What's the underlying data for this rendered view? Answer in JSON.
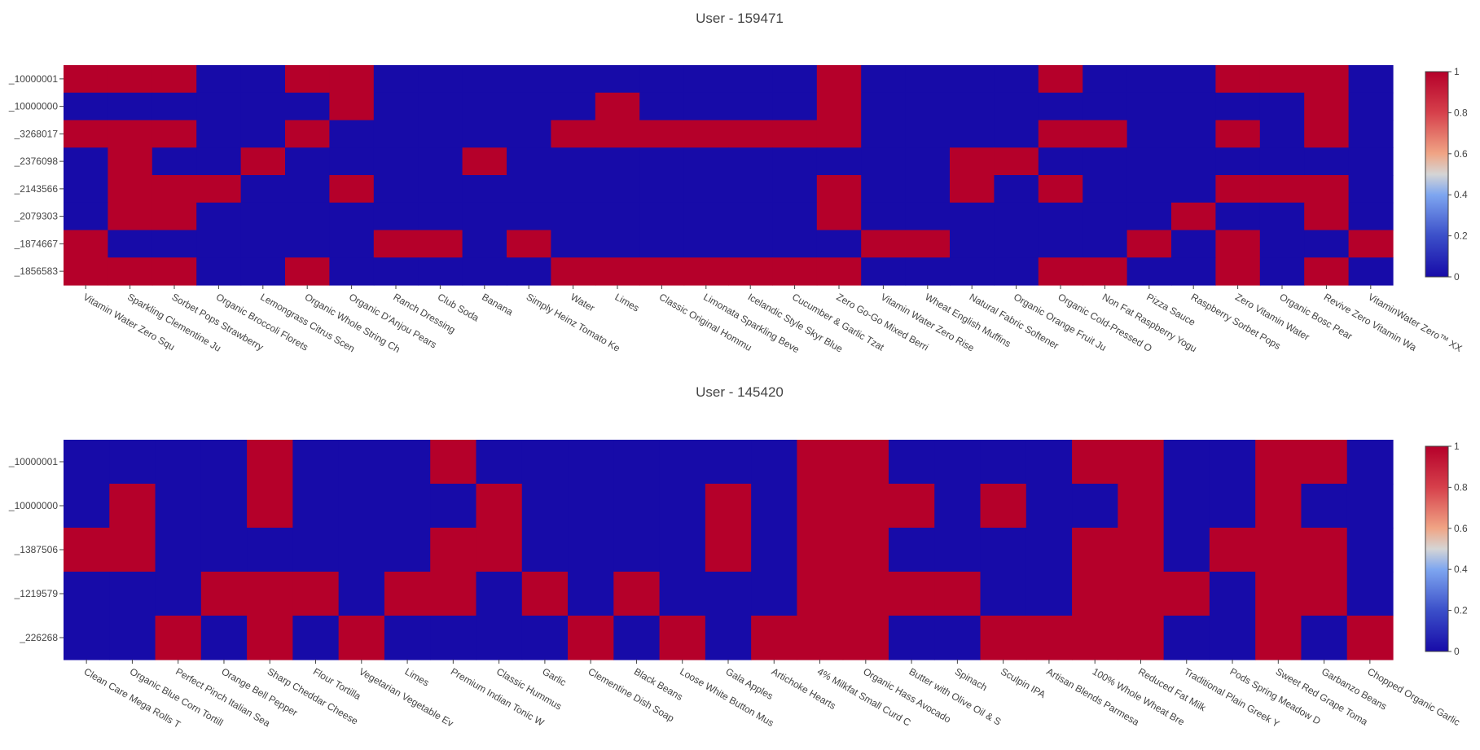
{
  "colors": {
    "one": "#b5002a",
    "zero": "#170ba8",
    "colorscale": [
      [
        0,
        "#170ba8"
      ],
      [
        0.2,
        "#3b4fc9"
      ],
      [
        0.4,
        "#7ea6f0"
      ],
      [
        0.5,
        "#d5d5d5"
      ],
      [
        0.6,
        "#f0a585"
      ],
      [
        0.8,
        "#d6404b"
      ],
      [
        1,
        "#b5002a"
      ]
    ]
  },
  "chart_data": [
    {
      "type": "heatmap",
      "title": "User - 159471",
      "colorbar_ticks": [
        "0",
        "0.2",
        "0.4",
        "0.6",
        "0.8",
        "1"
      ],
      "y": [
        "_10000001",
        "_10000000",
        "_3268017",
        "_2376098",
        "_2143566",
        "_2079303",
        "_1874667",
        "_1856583"
      ],
      "x": [
        "Vitamin Water Zero Squ",
        "Sparkling Clementine Ju",
        "Sorbet Pops Strawberry",
        "Organic Broccoli Florets",
        "Lemongrass Citrus Scen",
        "Organic Whole String Ch",
        "Organic D'Anjou Pears",
        "Ranch Dressing",
        "Club Soda",
        "Banana",
        "Simply Heinz Tomato Ke",
        "Water",
        "Limes",
        "Classic Original Hommu",
        "Limonata Sparkling Beve",
        "Icelandic Style Skyr Blue",
        "Cucumber & Garlic Tzat",
        "Zero Go-Go Mixed Berri",
        "Vitamin Water Zero Rise",
        "Wheat English Muffins",
        "Natural Fabric Softener",
        "Organic Orange Fruit Ju",
        "Organic Cold-Pressed O",
        "Non Fat Raspberry Yogu",
        "Pizza Sauce",
        "Raspberry Sorbet Pops",
        "Zero Vitamin Water",
        "Organic Bosc Pear",
        "Revive Zero Vitamin Wa",
        "VitaminWater Zero™ XX"
      ],
      "z": [
        [
          1,
          1,
          1,
          0,
          0,
          1,
          1,
          0,
          0,
          0,
          0,
          0,
          0,
          0,
          0,
          0,
          0,
          1,
          0,
          0,
          0,
          0,
          1,
          0,
          0,
          0,
          1,
          1,
          1,
          0
        ],
        [
          0,
          0,
          0,
          0,
          0,
          0,
          1,
          0,
          0,
          0,
          0,
          0,
          1,
          0,
          0,
          0,
          0,
          1,
          0,
          0,
          0,
          0,
          0,
          0,
          0,
          0,
          0,
          0,
          1,
          0
        ],
        [
          1,
          1,
          1,
          0,
          0,
          1,
          0,
          0,
          0,
          0,
          0,
          1,
          1,
          1,
          1,
          1,
          1,
          1,
          0,
          0,
          0,
          0,
          1,
          1,
          0,
          0,
          1,
          0,
          1,
          0
        ],
        [
          0,
          1,
          0,
          0,
          1,
          0,
          0,
          0,
          0,
          1,
          0,
          0,
          0,
          0,
          0,
          0,
          0,
          0,
          0,
          0,
          1,
          1,
          0,
          0,
          0,
          0,
          0,
          0,
          0,
          0
        ],
        [
          0,
          1,
          1,
          1,
          0,
          0,
          1,
          0,
          0,
          0,
          0,
          0,
          0,
          0,
          0,
          0,
          0,
          1,
          0,
          0,
          1,
          0,
          1,
          0,
          0,
          0,
          1,
          1,
          1,
          0
        ],
        [
          0,
          1,
          1,
          0,
          0,
          0,
          0,
          0,
          0,
          0,
          0,
          0,
          0,
          0,
          0,
          0,
          0,
          1,
          0,
          0,
          0,
          0,
          0,
          0,
          0,
          1,
          0,
          0,
          1,
          0
        ],
        [
          1,
          0,
          0,
          0,
          0,
          0,
          0,
          1,
          1,
          0,
          1,
          0,
          0,
          0,
          0,
          0,
          0,
          0,
          1,
          1,
          0,
          0,
          0,
          0,
          1,
          0,
          1,
          0,
          0,
          1
        ],
        [
          1,
          1,
          1,
          0,
          0,
          1,
          0,
          0,
          0,
          0,
          0,
          1,
          1,
          1,
          1,
          1,
          1,
          1,
          0,
          0,
          0,
          0,
          1,
          1,
          0,
          0,
          1,
          0,
          1,
          0
        ]
      ]
    },
    {
      "type": "heatmap",
      "title": "User - 145420",
      "colorbar_ticks": [
        "0",
        "0.2",
        "0.4",
        "0.6",
        "0.8",
        "1"
      ],
      "y": [
        "_10000001",
        "_10000000",
        "_1387506",
        "_1219579",
        "_226268"
      ],
      "x": [
        "Clean Care Mega Rolls T",
        "Organic Blue Corn Tortill",
        "Perfect Pinch Italian Sea",
        "Orange Bell Pepper",
        "Sharp Cheddar Cheese",
        "Flour Tortilla",
        "Vegetarian Vegetable Ev",
        "Limes",
        "Premium Indian Tonic W",
        "Classic Hummus",
        "Garlic",
        "Clementine Dish Soap",
        "Black Beans",
        "Loose White Button Mus",
        "Gala Apples",
        "Artichoke Hearts",
        "4% Milkfat Small Curd C",
        "Organic Hass Avocado",
        "Butter with Olive Oil & S",
        "Spinach",
        "Sculpin IPA",
        "Artisan Blends Parmesa",
        "100% Whole Wheat Bre",
        "Reduced Fat Milk",
        "Traditional Plain Greek Y",
        "Pods Spring Meadow D",
        "Sweet Red Grape Toma",
        "Garbanzo Beans",
        "Chopped Organic Garlic"
      ],
      "z": [
        [
          0,
          0,
          0,
          0,
          1,
          0,
          0,
          0,
          1,
          0,
          0,
          0,
          0,
          0,
          0,
          0,
          1,
          1,
          0,
          0,
          0,
          0,
          1,
          1,
          0,
          0,
          1,
          1,
          0
        ],
        [
          0,
          1,
          0,
          0,
          1,
          0,
          0,
          0,
          0,
          1,
          0,
          0,
          0,
          0,
          1,
          0,
          1,
          1,
          1,
          0,
          1,
          0,
          0,
          1,
          0,
          0,
          1,
          0,
          0
        ],
        [
          1,
          1,
          0,
          0,
          0,
          0,
          0,
          0,
          1,
          1,
          0,
          0,
          0,
          0,
          1,
          0,
          1,
          1,
          0,
          0,
          0,
          0,
          1,
          1,
          0,
          1,
          1,
          1,
          0
        ],
        [
          0,
          0,
          0,
          1,
          1,
          1,
          0,
          1,
          1,
          0,
          1,
          0,
          1,
          0,
          0,
          0,
          1,
          1,
          1,
          1,
          0,
          0,
          1,
          1,
          1,
          0,
          1,
          1,
          0
        ],
        [
          0,
          0,
          1,
          0,
          1,
          0,
          1,
          0,
          0,
          0,
          0,
          1,
          0,
          1,
          0,
          1,
          1,
          1,
          0,
          0,
          1,
          1,
          1,
          1,
          0,
          0,
          1,
          0,
          1
        ]
      ]
    }
  ]
}
